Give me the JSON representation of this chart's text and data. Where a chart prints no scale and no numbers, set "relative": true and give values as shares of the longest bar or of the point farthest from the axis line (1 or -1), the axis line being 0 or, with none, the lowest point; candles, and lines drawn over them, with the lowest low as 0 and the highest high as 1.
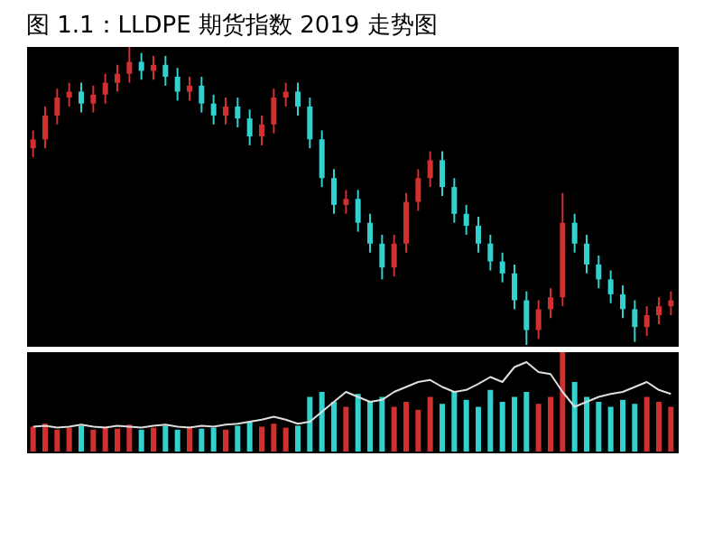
{
  "chart_data": [
    {
      "type": "candlestick",
      "title": "图 1.1：LLDPE 期货指数 2019 走势图",
      "relative": true,
      "categories": [
        null,
        null,
        null,
        null,
        null,
        null,
        null,
        null,
        null,
        null,
        null,
        null,
        null,
        null,
        null,
        null,
        null,
        null,
        null,
        null,
        null,
        null,
        null,
        null,
        null,
        null,
        null,
        null,
        null,
        null,
        null,
        null,
        null,
        null,
        null,
        null,
        null,
        null,
        null,
        null,
        null,
        null,
        null,
        null,
        null,
        null,
        null,
        null,
        null,
        null,
        null,
        null,
        null,
        null
      ],
      "ohlc": [
        [
          0.66,
          0.72,
          0.63,
          0.69
        ],
        [
          0.69,
          0.8,
          0.66,
          0.77
        ],
        [
          0.77,
          0.86,
          0.74,
          0.83
        ],
        [
          0.83,
          0.88,
          0.8,
          0.85
        ],
        [
          0.85,
          0.88,
          0.78,
          0.81
        ],
        [
          0.81,
          0.87,
          0.78,
          0.84
        ],
        [
          0.84,
          0.91,
          0.81,
          0.88
        ],
        [
          0.88,
          0.94,
          0.85,
          0.91
        ],
        [
          0.91,
          1.0,
          0.88,
          0.95
        ],
        [
          0.95,
          0.98,
          0.89,
          0.92
        ],
        [
          0.92,
          0.97,
          0.89,
          0.94
        ],
        [
          0.94,
          0.97,
          0.87,
          0.9
        ],
        [
          0.9,
          0.93,
          0.82,
          0.85
        ],
        [
          0.85,
          0.9,
          0.82,
          0.87
        ],
        [
          0.87,
          0.9,
          0.78,
          0.81
        ],
        [
          0.81,
          0.84,
          0.74,
          0.77
        ],
        [
          0.77,
          0.83,
          0.74,
          0.8
        ],
        [
          0.8,
          0.83,
          0.73,
          0.76
        ],
        [
          0.76,
          0.79,
          0.67,
          0.7
        ],
        [
          0.7,
          0.77,
          0.67,
          0.74
        ],
        [
          0.74,
          0.86,
          0.71,
          0.83
        ],
        [
          0.83,
          0.88,
          0.8,
          0.85
        ],
        [
          0.85,
          0.88,
          0.77,
          0.8
        ],
        [
          0.8,
          0.83,
          0.66,
          0.69
        ],
        [
          0.69,
          0.72,
          0.53,
          0.56
        ],
        [
          0.56,
          0.59,
          0.44,
          0.47
        ],
        [
          0.47,
          0.52,
          0.44,
          0.49
        ],
        [
          0.49,
          0.52,
          0.38,
          0.41
        ],
        [
          0.41,
          0.44,
          0.31,
          0.34
        ],
        [
          0.34,
          0.37,
          0.22,
          0.26
        ],
        [
          0.26,
          0.37,
          0.23,
          0.34
        ],
        [
          0.34,
          0.51,
          0.31,
          0.48
        ],
        [
          0.48,
          0.59,
          0.45,
          0.56
        ],
        [
          0.56,
          0.65,
          0.53,
          0.62
        ],
        [
          0.62,
          0.65,
          0.5,
          0.53
        ],
        [
          0.53,
          0.56,
          0.41,
          0.44
        ],
        [
          0.44,
          0.47,
          0.37,
          0.4
        ],
        [
          0.4,
          0.43,
          0.31,
          0.34
        ],
        [
          0.34,
          0.37,
          0.25,
          0.28
        ],
        [
          0.28,
          0.31,
          0.21,
          0.24
        ],
        [
          0.24,
          0.27,
          0.12,
          0.15
        ],
        [
          0.15,
          0.18,
          0.0,
          0.05
        ],
        [
          0.05,
          0.15,
          0.02,
          0.12
        ],
        [
          0.12,
          0.19,
          0.09,
          0.16
        ],
        [
          0.16,
          0.51,
          0.13,
          0.41
        ],
        [
          0.41,
          0.44,
          0.31,
          0.34
        ],
        [
          0.34,
          0.37,
          0.24,
          0.27
        ],
        [
          0.27,
          0.3,
          0.19,
          0.22
        ],
        [
          0.22,
          0.25,
          0.14,
          0.17
        ],
        [
          0.17,
          0.2,
          0.09,
          0.12
        ],
        [
          0.12,
          0.15,
          0.01,
          0.06
        ],
        [
          0.06,
          0.13,
          0.03,
          0.1
        ],
        [
          0.1,
          0.16,
          0.07,
          0.13
        ],
        [
          0.13,
          0.18,
          0.1,
          0.15
        ]
      ],
      "colors": [
        "#d0302e",
        "#d0302e",
        "#d0302e",
        "#d0302e",
        "#33d0d0",
        "#d0302e",
        "#d0302e",
        "#d0302e",
        "#d0302e",
        "#33d0d0",
        "#d0302e",
        "#33d0d0",
        "#33d0d0",
        "#d0302e",
        "#33d0d0",
        "#33d0d0",
        "#d0302e",
        "#33d0d0",
        "#33d0d0",
        "#d0302e",
        "#d0302e",
        "#d0302e",
        "#33d0d0",
        "#33d0d0",
        "#33d0d0",
        "#33d0d0",
        "#d0302e",
        "#33d0d0",
        "#33d0d0",
        "#33d0d0",
        "#d0302e",
        "#d0302e",
        "#d0302e",
        "#d0302e",
        "#33d0d0",
        "#33d0d0",
        "#33d0d0",
        "#33d0d0",
        "#33d0d0",
        "#33d0d0",
        "#33d0d0",
        "#33d0d0",
        "#d0302e",
        "#d0302e",
        "#d0302e",
        "#33d0d0",
        "#33d0d0",
        "#33d0d0",
        "#33d0d0",
        "#33d0d0",
        "#33d0d0",
        "#d0302e",
        "#d0302e",
        "#d0302e"
      ]
    },
    {
      "type": "bar",
      "relative": true,
      "categories": [
        null,
        null,
        null,
        null,
        null,
        null,
        null,
        null,
        null,
        null,
        null,
        null,
        null,
        null,
        null,
        null,
        null,
        null,
        null,
        null,
        null,
        null,
        null,
        null,
        null,
        null,
        null,
        null,
        null,
        null,
        null,
        null,
        null,
        null,
        null,
        null,
        null,
        null,
        null,
        null,
        null,
        null,
        null,
        null,
        null,
        null,
        null,
        null,
        null,
        null,
        null,
        null,
        null,
        null
      ],
      "series": [
        {
          "type": "bar",
          "values": [
            0.25,
            0.28,
            0.22,
            0.24,
            0.26,
            0.22,
            0.25,
            0.23,
            0.27,
            0.22,
            0.24,
            0.26,
            0.22,
            0.25,
            0.23,
            0.24,
            0.22,
            0.26,
            0.3,
            0.25,
            0.28,
            0.24,
            0.26,
            0.55,
            0.6,
            0.5,
            0.45,
            0.58,
            0.5,
            0.55,
            0.45,
            0.5,
            0.42,
            0.55,
            0.48,
            0.6,
            0.52,
            0.45,
            0.62,
            0.5,
            0.55,
            0.6,
            0.48,
            0.55,
            1.0,
            0.7,
            0.55,
            0.5,
            0.45,
            0.52,
            0.48,
            0.55,
            0.5,
            0.45
          ],
          "colors": [
            "#d0302e",
            "#d0302e",
            "#d0302e",
            "#d0302e",
            "#33d0d0",
            "#d0302e",
            "#d0302e",
            "#d0302e",
            "#d0302e",
            "#33d0d0",
            "#d0302e",
            "#33d0d0",
            "#33d0d0",
            "#d0302e",
            "#33d0d0",
            "#33d0d0",
            "#d0302e",
            "#33d0d0",
            "#33d0d0",
            "#d0302e",
            "#d0302e",
            "#d0302e",
            "#33d0d0",
            "#33d0d0",
            "#33d0d0",
            "#33d0d0",
            "#d0302e",
            "#33d0d0",
            "#33d0d0",
            "#33d0d0",
            "#d0302e",
            "#d0302e",
            "#d0302e",
            "#d0302e",
            "#33d0d0",
            "#33d0d0",
            "#33d0d0",
            "#33d0d0",
            "#33d0d0",
            "#33d0d0",
            "#33d0d0",
            "#33d0d0",
            "#d0302e",
            "#d0302e",
            "#d0302e",
            "#33d0d0",
            "#33d0d0",
            "#33d0d0",
            "#33d0d0",
            "#33d0d0",
            "#33d0d0",
            "#d0302e",
            "#d0302e",
            "#d0302e"
          ]
        },
        {
          "type": "line",
          "color": "#dddddd",
          "values": [
            0.25,
            0.26,
            0.24,
            0.25,
            0.27,
            0.25,
            0.24,
            0.26,
            0.25,
            0.24,
            0.26,
            0.27,
            0.25,
            0.24,
            0.26,
            0.25,
            0.27,
            0.28,
            0.3,
            0.32,
            0.35,
            0.32,
            0.28,
            0.3,
            0.4,
            0.5,
            0.6,
            0.55,
            0.5,
            0.52,
            0.6,
            0.65,
            0.7,
            0.72,
            0.65,
            0.6,
            0.62,
            0.68,
            0.75,
            0.7,
            0.85,
            0.9,
            0.8,
            0.78,
            0.6,
            0.45,
            0.5,
            0.55,
            0.58,
            0.6,
            0.65,
            0.7,
            0.62,
            0.58
          ]
        }
      ]
    }
  ]
}
